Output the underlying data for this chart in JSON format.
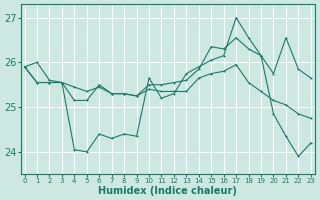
{
  "title": "",
  "xlabel": "Humidex (Indice chaleur)",
  "ylabel": "",
  "background_color": "#cce8e0",
  "grid_color": "#ffffff",
  "line_color": "#1a7a6a",
  "ylim": [
    23.5,
    27.3
  ],
  "xlim": [
    -0.3,
    23.3
  ],
  "yticks": [
    24,
    25,
    26,
    27
  ],
  "ytick_labels": [
    "24",
    "25",
    "26",
    "27"
  ],
  "xticks": [
    0,
    1,
    2,
    3,
    4,
    5,
    6,
    7,
    8,
    9,
    10,
    11,
    12,
    13,
    14,
    15,
    16,
    17,
    18,
    19,
    20,
    21,
    22,
    23
  ],
  "line1_x": [
    0,
    1,
    2,
    3,
    4,
    5,
    6,
    7,
    8,
    9,
    10,
    11,
    12,
    13,
    14,
    15,
    16,
    17,
    18,
    19,
    20,
    21,
    22,
    23
  ],
  "line1_y": [
    25.9,
    26.0,
    25.6,
    25.55,
    24.05,
    24.0,
    24.4,
    24.3,
    24.4,
    24.35,
    25.65,
    25.2,
    25.3,
    25.75,
    25.9,
    26.05,
    26.15,
    27.0,
    26.55,
    26.15,
    24.85,
    24.35,
    23.9,
    24.2
  ],
  "line2_x": [
    0,
    1,
    2,
    3,
    4,
    5,
    6,
    7,
    8,
    9,
    10,
    11,
    12,
    13,
    14,
    15,
    16,
    17,
    18,
    19,
    20,
    21,
    22,
    23
  ],
  "line2_y": [
    25.9,
    25.55,
    25.55,
    25.55,
    25.45,
    25.35,
    25.45,
    25.3,
    25.3,
    25.25,
    25.4,
    25.35,
    25.35,
    25.35,
    25.65,
    25.75,
    25.8,
    25.95,
    25.55,
    25.35,
    25.15,
    25.05,
    24.85,
    24.75
  ],
  "line3_x": [
    0,
    1,
    2,
    3,
    4,
    5,
    6,
    7,
    8,
    9,
    10,
    11,
    12,
    13,
    14,
    15,
    16,
    17,
    18,
    19,
    20,
    21,
    22,
    23
  ],
  "line3_y": [
    25.9,
    25.55,
    25.55,
    25.55,
    25.15,
    25.15,
    25.5,
    25.3,
    25.3,
    25.25,
    25.5,
    25.5,
    25.55,
    25.6,
    25.85,
    26.35,
    26.3,
    26.55,
    26.3,
    26.15,
    25.75,
    26.55,
    25.85,
    25.65
  ]
}
